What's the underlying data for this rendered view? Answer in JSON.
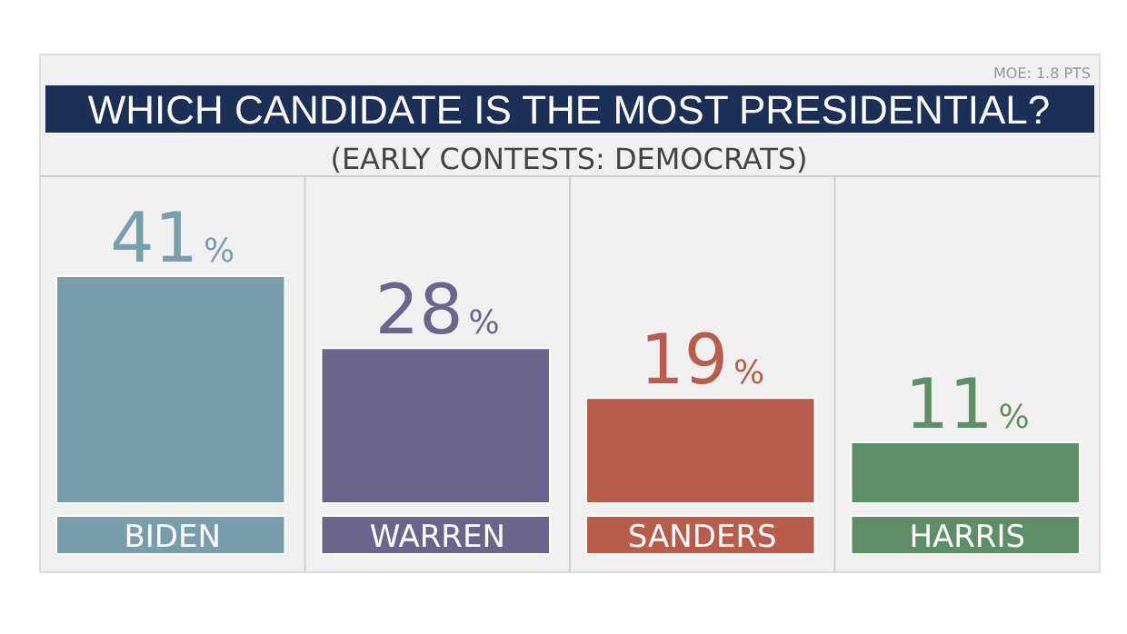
{
  "chart_data": {
    "type": "bar",
    "title": "WHICH CANDIDATE IS THE MOST PRESIDENTIAL?",
    "subtitle": "(EARLY CONTESTS: DEMOCRATS)",
    "annotations": [
      "MOE: 1.8 PTS"
    ],
    "categories": [
      "BIDEN",
      "WARREN",
      "SANDERS",
      "HARRIS"
    ],
    "values": [
      41,
      28,
      19,
      11
    ],
    "colors": [
      "#789dab",
      "#6b648c",
      "#b85c4b",
      "#5e8e68"
    ],
    "value_labels": [
      "41%",
      "28%",
      "19%",
      "11%"
    ]
  }
}
